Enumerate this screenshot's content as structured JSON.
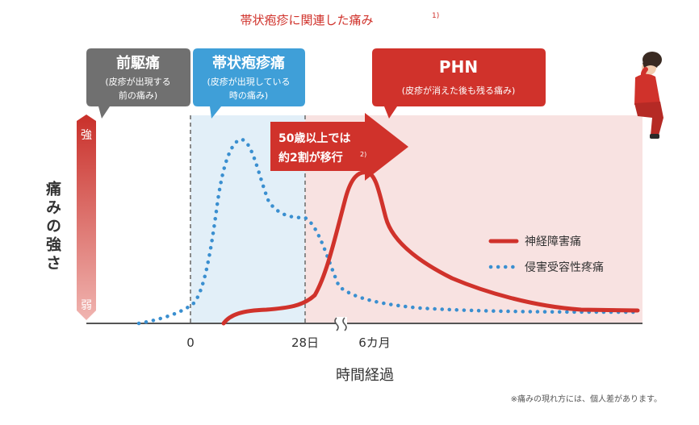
{
  "chart_data": {
    "type": "line",
    "title": "帯状疱疹に関連した痛み",
    "title_ref": "1)",
    "phases": [
      {
        "title": "前駆痛",
        "desc": [
          "(皮疹が出現する",
          "前の痛み)"
        ],
        "color": "#707070"
      },
      {
        "title": "帯状疱疹痛",
        "desc": [
          "(皮疹が出現している",
          "時の痛み)"
        ],
        "color": "#3f9fd8"
      },
      {
        "title": "PHN",
        "desc": [
          "(皮疹が消えた後も残る痛み)"
        ],
        "color": "#d0322b"
      }
    ],
    "callout": {
      "lines": [
        "50歳以上では",
        "約2割が移行"
      ],
      "ref": "2)"
    },
    "ylabel": "痛みの強さ",
    "y_high_label": "強",
    "y_low_label": "弱",
    "xlabel": "時間経過",
    "xticks": [
      "0",
      "28日",
      "6カ月"
    ],
    "series": [
      {
        "name": "神経障害痛",
        "style": "solid",
        "color": "#d0322b"
      },
      {
        "name": "侵害受容性疼痛",
        "style": "dotted",
        "color": "#3a8fd0"
      }
    ],
    "footnote": "※痛みの現れ方には、個人差があります。"
  }
}
